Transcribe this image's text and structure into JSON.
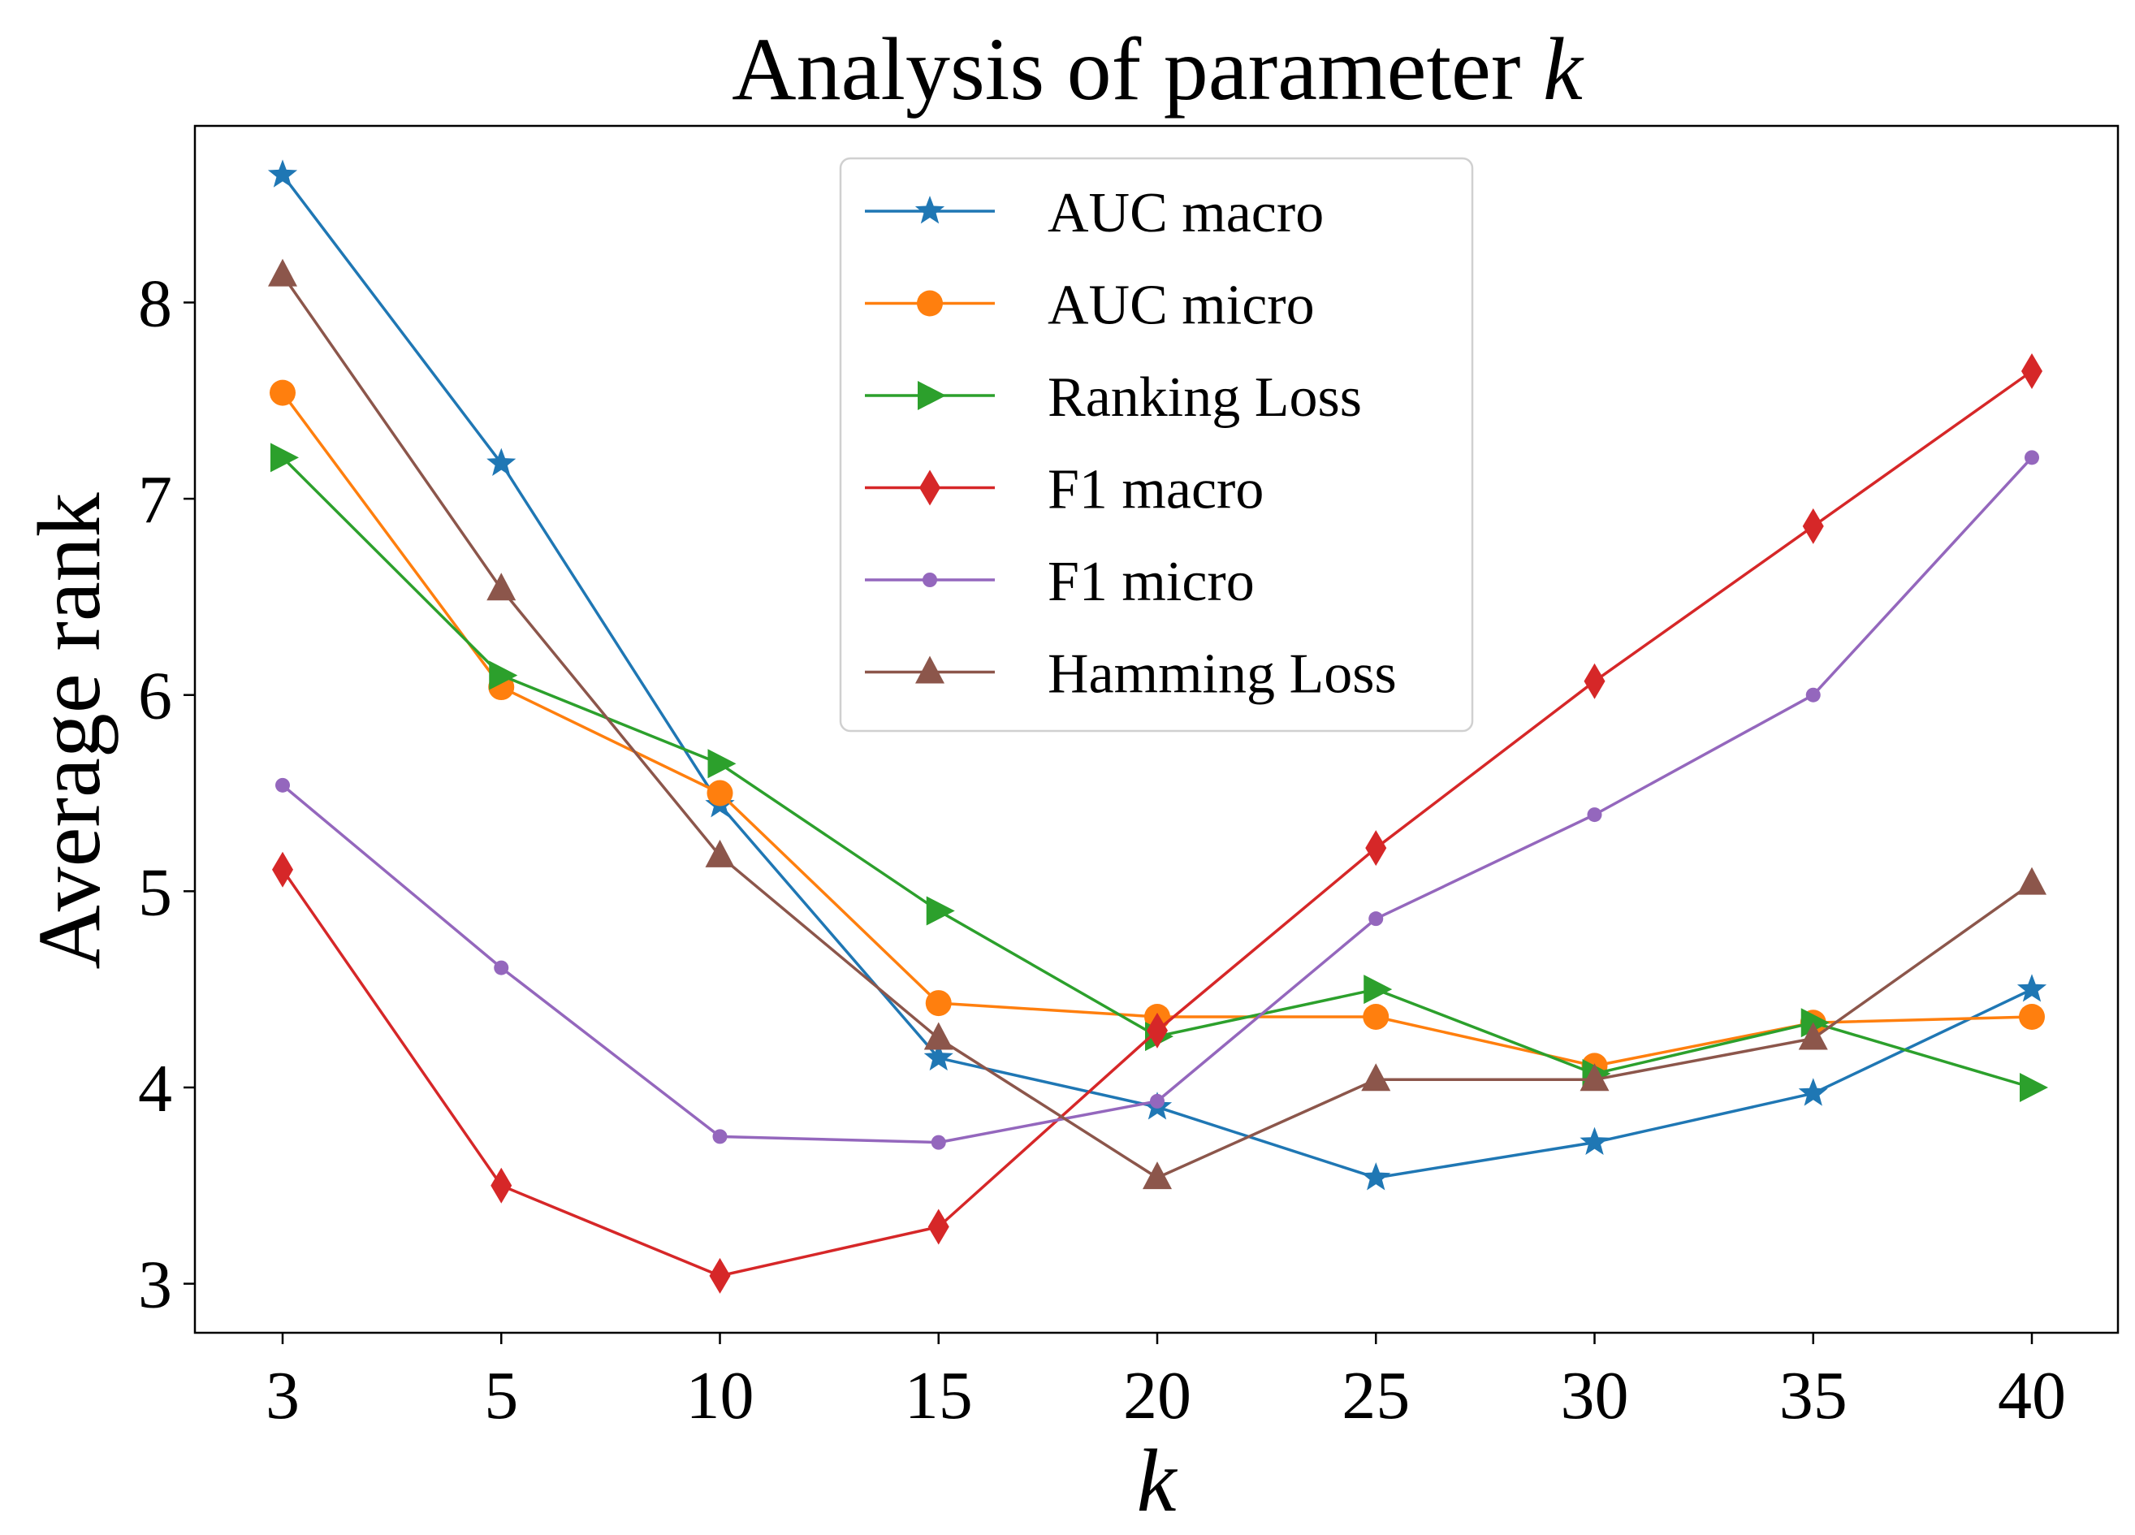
{
  "chart_data": {
    "type": "line",
    "title_prefix": "Analysis of parameter ",
    "title_var": "k",
    "xlabel": "k",
    "ylabel": "Average rank",
    "categories": [
      "3",
      "5",
      "10",
      "15",
      "20",
      "25",
      "30",
      "35",
      "40"
    ],
    "ylim": [
      2.75,
      8.9
    ],
    "yticks": [
      3,
      4,
      5,
      6,
      7,
      8
    ],
    "grid": false,
    "legend_position": "top-center",
    "series": [
      {
        "name": "AUC macro",
        "color": "#1f77b4",
        "marker": "star",
        "values": [
          8.65,
          7.18,
          5.44,
          4.15,
          3.9,
          3.54,
          3.72,
          3.97,
          4.5
        ]
      },
      {
        "name": "AUC micro",
        "color": "#ff7f0e",
        "marker": "circle",
        "values": [
          7.54,
          6.04,
          5.5,
          4.43,
          4.36,
          4.36,
          4.11,
          4.33,
          4.36
        ]
      },
      {
        "name": "Ranking Loss",
        "color": "#2ca02c",
        "marker": "triangle-right",
        "values": [
          7.21,
          6.1,
          5.65,
          4.9,
          4.26,
          4.5,
          4.07,
          4.33,
          4.0
        ]
      },
      {
        "name": "F1 macro",
        "color": "#d62728",
        "marker": "diamond",
        "values": [
          5.11,
          3.5,
          3.04,
          3.29,
          4.29,
          5.22,
          6.07,
          6.86,
          7.65
        ]
      },
      {
        "name": "F1 micro",
        "color": "#9467bd",
        "marker": "small-circle",
        "values": [
          5.54,
          4.61,
          3.75,
          3.72,
          3.93,
          4.86,
          5.39,
          6.0,
          7.21
        ]
      },
      {
        "name": "Hamming Loss",
        "color": "#8c564b",
        "marker": "triangle-up",
        "values": [
          8.14,
          6.54,
          5.18,
          4.25,
          3.54,
          4.04,
          4.04,
          4.25,
          5.04
        ]
      }
    ]
  }
}
